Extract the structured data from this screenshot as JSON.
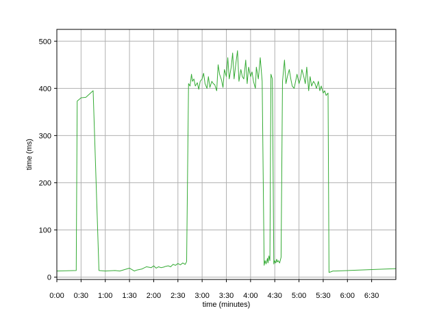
{
  "chart_data": {
    "type": "line",
    "xlabel": "time (minutes)",
    "ylabel": "time (ms)",
    "xlim": [
      0,
      7.0
    ],
    "ylim": [
      -5,
      525
    ],
    "x_ticks": [
      {
        "value": 0,
        "label": "0:00"
      },
      {
        "value": 0.5,
        "label": "0:30"
      },
      {
        "value": 1.0,
        "label": "1:00"
      },
      {
        "value": 1.5,
        "label": "1:30"
      },
      {
        "value": 2.0,
        "label": "2:00"
      },
      {
        "value": 2.5,
        "label": "2:30"
      },
      {
        "value": 3.0,
        "label": "3:00"
      },
      {
        "value": 3.5,
        "label": "3:30"
      },
      {
        "value": 4.0,
        "label": "4:00"
      },
      {
        "value": 4.5,
        "label": "4:30"
      },
      {
        "value": 5.0,
        "label": "5:00"
      },
      {
        "value": 5.5,
        "label": "5:30"
      },
      {
        "value": 6.0,
        "label": "6:00"
      },
      {
        "value": 6.5,
        "label": "6:30"
      }
    ],
    "y_ticks": [
      {
        "value": 0,
        "label": "0"
      },
      {
        "value": 100,
        "label": "100"
      },
      {
        "value": 200,
        "label": "200"
      },
      {
        "value": 300,
        "label": "300"
      },
      {
        "value": 400,
        "label": "400"
      },
      {
        "value": 500,
        "label": "500"
      }
    ],
    "grid": true,
    "series": [
      {
        "color": "#33aa33",
        "x": [
          0,
          0.4,
          0.42,
          0.5,
          0.6,
          0.75,
          0.87,
          1.0,
          1.2,
          1.3,
          1.5,
          1.6,
          1.65,
          1.75,
          1.85,
          1.95,
          2.0,
          2.05,
          2.1,
          2.15,
          2.2,
          2.25,
          2.3,
          2.35,
          2.4,
          2.45,
          2.5,
          2.55,
          2.6,
          2.65,
          2.68,
          2.72,
          2.75,
          2.78,
          2.8,
          2.83,
          2.86,
          2.9,
          2.93,
          2.96,
          3.0,
          3.03,
          3.06,
          3.1,
          3.13,
          3.16,
          3.2,
          3.23,
          3.26,
          3.3,
          3.33,
          3.36,
          3.4,
          3.43,
          3.46,
          3.5,
          3.53,
          3.56,
          3.6,
          3.63,
          3.66,
          3.7,
          3.73,
          3.76,
          3.8,
          3.83,
          3.86,
          3.9,
          3.93,
          3.96,
          4.0,
          4.03,
          4.06,
          4.1,
          4.12,
          4.16,
          4.2,
          4.24,
          4.28,
          4.3,
          4.32,
          4.35,
          4.36,
          4.38,
          4.4,
          4.42,
          4.45,
          4.48,
          4.5,
          4.52,
          4.54,
          4.55,
          4.57,
          4.6,
          4.63,
          4.66,
          4.7,
          4.73,
          4.76,
          4.8,
          4.83,
          4.86,
          4.9,
          4.93,
          4.96,
          5.0,
          5.03,
          5.06,
          5.1,
          5.13,
          5.16,
          5.2,
          5.23,
          5.26,
          5.3,
          5.33,
          5.36,
          5.4,
          5.43,
          5.46,
          5.5,
          5.53,
          5.56,
          5.6,
          5.62,
          5.65,
          5.7,
          5.75,
          7.0
        ],
        "y": [
          13,
          14,
          373,
          380,
          381,
          395,
          14,
          13,
          14,
          13,
          19,
          13,
          15,
          17,
          22,
          20,
          24,
          19,
          22,
          20,
          21,
          23,
          24,
          22,
          27,
          25,
          29,
          26,
          30,
          27,
          33,
          410,
          405,
          430,
          415,
          420,
          405,
          412,
          398,
          415,
          420,
          432,
          410,
          400,
          425,
          402,
          415,
          410,
          408,
          395,
          450,
          430,
          418,
          402,
          440,
          425,
          465,
          420,
          445,
          475,
          420,
          455,
          480,
          415,
          440,
          425,
          420,
          460,
          410,
          445,
          425,
          435,
          415,
          400,
          445,
          420,
          465,
          415,
          25,
          35,
          28,
          40,
          30,
          45,
          35,
          430,
          420,
          28,
          35,
          30,
          38,
          32,
          35,
          30,
          42,
          415,
          460,
          410,
          425,
          440,
          420,
          405,
          400,
          415,
          430,
          410,
          420,
          440,
          425,
          410,
          445,
          395,
          425,
          405,
          415,
          410,
          400,
          415,
          395,
          405,
          390,
          395,
          385,
          390,
          10,
          11,
          13,
          13,
          18
        ]
      }
    ]
  }
}
